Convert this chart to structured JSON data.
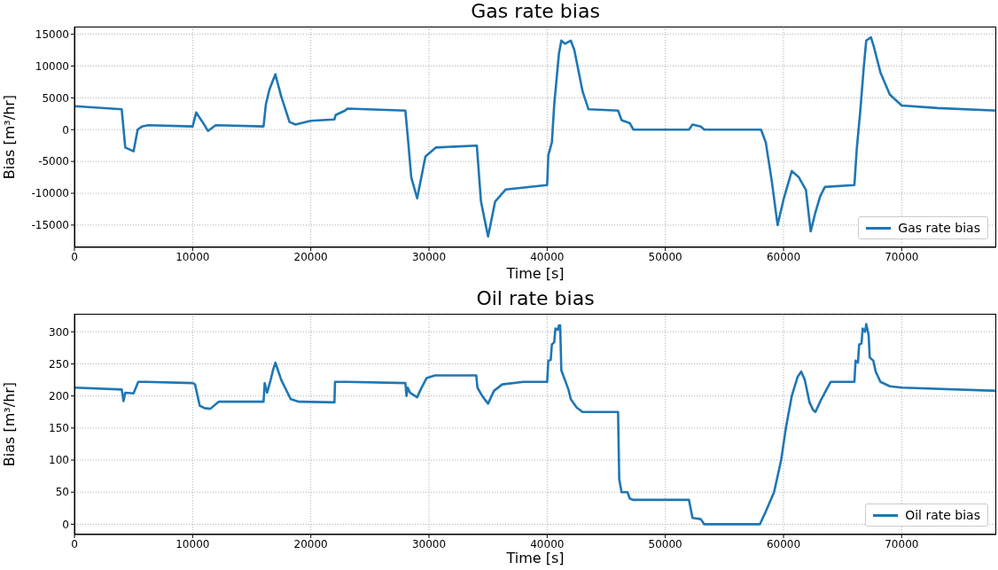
{
  "chart_data": [
    {
      "type": "line",
      "title": "Gas rate bias",
      "xlabel": "Time [s]",
      "ylabel": "Bias [m³/hr]",
      "xlim": [
        0,
        78000
      ],
      "xticks": [
        0,
        10000,
        20000,
        30000,
        40000,
        50000,
        60000,
        70000
      ],
      "ylim": [
        -18500,
        16200
      ],
      "yticks": [
        -15000,
        -10000,
        -5000,
        0,
        5000,
        10000,
        15000
      ],
      "grid": true,
      "legend": "bottom right",
      "line_style": "solid",
      "marker": "none",
      "series": [
        {
          "name": "Gas rate bias",
          "color": "#1f77b4",
          "x": [
            0,
            4000,
            4300,
            5000,
            5350,
            5700,
            6250,
            10000,
            10300,
            10800,
            11300,
            11950,
            16000,
            16200,
            16500,
            17000,
            17500,
            18200,
            18700,
            20000,
            22000,
            22100,
            22900,
            23100,
            28000,
            28200,
            28500,
            29000,
            29700,
            30600,
            34050,
            34400,
            35000,
            35600,
            36500,
            40000,
            40100,
            40400,
            40600,
            40800,
            41000,
            41200,
            41500,
            42000,
            42300,
            43000,
            43500,
            46000,
            46300,
            47000,
            47300,
            52000,
            52300,
            53000,
            53300,
            58100,
            58500,
            59000,
            59500,
            60000,
            60700,
            61300,
            61900,
            62300,
            62700,
            63100,
            63500,
            66000,
            66200,
            66500,
            66800,
            67000,
            67400,
            67650,
            68200,
            69000,
            70000,
            73000,
            78000
          ],
          "values": [
            3700,
            3200,
            -2800,
            -3400,
            0,
            500,
            700,
            500,
            2700,
            1300,
            -200,
            700,
            500,
            4000,
            6300,
            8700,
            5200,
            1200,
            800,
            1400,
            1600,
            2300,
            3000,
            3300,
            3000,
            -1000,
            -7500,
            -10800,
            -4200,
            -2800,
            -2500,
            -11300,
            -16800,
            -11300,
            -9400,
            -8700,
            -4000,
            -2000,
            4000,
            8000,
            12000,
            14000,
            13500,
            14000,
            12500,
            6000,
            3200,
            3000,
            1500,
            1000,
            0,
            0,
            800,
            500,
            0,
            0,
            -2000,
            -8000,
            -15000,
            -11000,
            -6500,
            -7500,
            -9500,
            -16000,
            -13000,
            -10500,
            -9000,
            -8700,
            -3000,
            3000,
            10000,
            14000,
            14500,
            13000,
            9000,
            5500,
            3800,
            3400,
            3000
          ]
        }
      ]
    },
    {
      "type": "line",
      "title": "Oil rate bias",
      "xlabel": "Time [s]",
      "ylabel": "Bias [m³/hr]",
      "xlim": [
        0,
        78000
      ],
      "xticks": [
        0,
        10000,
        20000,
        30000,
        40000,
        50000,
        60000,
        70000
      ],
      "ylim": [
        -16,
        328
      ],
      "yticks": [
        0,
        50,
        100,
        150,
        200,
        250,
        300
      ],
      "grid": true,
      "legend": "bottom right",
      "line_style": "solid",
      "marker": "none",
      "series": [
        {
          "name": "Oil rate bias",
          "color": "#1f77b4",
          "x": [
            0,
            4000,
            4150,
            4300,
            5000,
            5400,
            6000,
            10000,
            10200,
            10600,
            11000,
            11500,
            12200,
            16000,
            16100,
            16300,
            16600,
            16800,
            17000,
            17500,
            18300,
            19000,
            22000,
            22050,
            23000,
            28000,
            28100,
            28200,
            28400,
            29000,
            29300,
            29800,
            30500,
            34000,
            34100,
            34500,
            35000,
            35500,
            36200,
            38000,
            40000,
            40100,
            40300,
            40400,
            40600,
            40700,
            40900,
            41000,
            41100,
            41200,
            41400,
            41600,
            41800,
            42000,
            42500,
            43000,
            46000,
            46100,
            46300,
            46800,
            47000,
            47300,
            52000,
            52300,
            53000,
            53300,
            58000,
            58500,
            59200,
            59800,
            60200,
            60700,
            61200,
            61500,
            61800,
            62200,
            62500,
            62700,
            63200,
            63700,
            64000,
            66000,
            66100,
            66300,
            66400,
            66600,
            66700,
            66900,
            67000,
            67200,
            67300,
            67600,
            67800,
            68200,
            69000,
            70000,
            78000
          ],
          "values": [
            213,
            210,
            192,
            205,
            204,
            222,
            222,
            220,
            218,
            185,
            181,
            180,
            191,
            191,
            220,
            205,
            225,
            240,
            252,
            225,
            195,
            191,
            190,
            222,
            222,
            220,
            200,
            213,
            205,
            198,
            210,
            228,
            232,
            232,
            213,
            200,
            188,
            208,
            218,
            222,
            222,
            255,
            256,
            280,
            284,
            305,
            303,
            310,
            310,
            240,
            230,
            220,
            210,
            195,
            182,
            175,
            175,
            70,
            50,
            50,
            40,
            38,
            38,
            10,
            8,
            0,
            0,
            20,
            50,
            100,
            150,
            200,
            230,
            238,
            225,
            190,
            178,
            175,
            195,
            212,
            222,
            222,
            255,
            252,
            280,
            282,
            305,
            300,
            312,
            295,
            260,
            255,
            238,
            222,
            215,
            213,
            208
          ]
        }
      ]
    }
  ]
}
